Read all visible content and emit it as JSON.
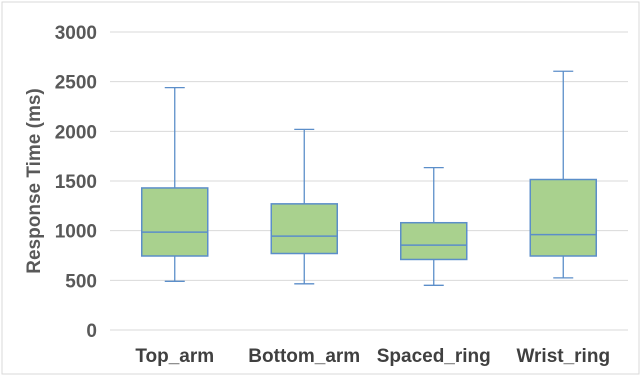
{
  "chart_data": {
    "type": "box",
    "categories": [
      "Top_arm",
      "Bottom_arm",
      "Spaced_ring",
      "Wrist_ring"
    ],
    "boxes": [
      {
        "name": "Top_arm",
        "min": 490,
        "q1": 745,
        "median": 985,
        "q3": 1430,
        "max": 2440
      },
      {
        "name": "Bottom_arm",
        "min": 465,
        "q1": 770,
        "median": 945,
        "q3": 1270,
        "max": 2020
      },
      {
        "name": "Spaced_ring",
        "min": 450,
        "q1": 710,
        "median": 855,
        "q3": 1080,
        "max": 1635
      },
      {
        "name": "Wrist_ring",
        "min": 525,
        "q1": 745,
        "median": 960,
        "q3": 1515,
        "max": 2605
      }
    ],
    "ylabel": "Response Time (ms)",
    "xlabel": "",
    "ylim": [
      0,
      3000
    ],
    "yticks": [
      0,
      500,
      1000,
      1500,
      2000,
      2500,
      3000
    ],
    "grid": true,
    "colors": {
      "box_fill": "#a9d18e",
      "box_stroke": "#5b8ec9",
      "grid": "#d9d9d9"
    }
  }
}
